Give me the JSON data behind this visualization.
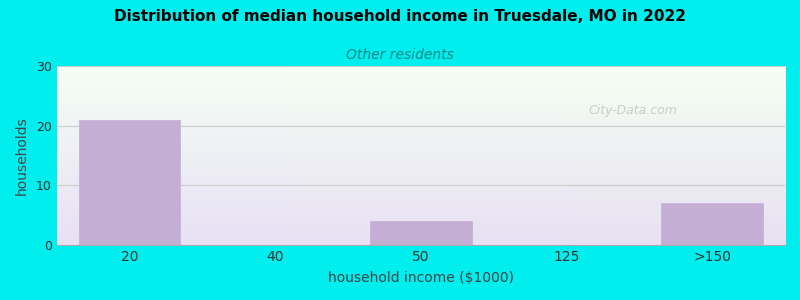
{
  "title": "Distribution of median household income in Truesdale, MO in 2022",
  "subtitle": "Other residents",
  "xlabel": "household income ($1000)",
  "ylabel": "households",
  "bar_labels": [
    "20",
    "40",
    "50",
    "125",
    ">150"
  ],
  "bar_positions": [
    0,
    1,
    2,
    3,
    4
  ],
  "bar_values": [
    21,
    0,
    4,
    0,
    7
  ],
  "bar_color": "#c4aed4",
  "ylim": [
    0,
    30
  ],
  "yticks": [
    0,
    10,
    20,
    30
  ],
  "background_color": "#00eeee",
  "title_color": "#000000",
  "subtitle_color": "#008888",
  "axis_label_color": "#444444",
  "watermark": "City-Data.com",
  "watermark_color": "#bbbbbb",
  "grad_tl": [
    0.96,
    1.0,
    0.96
  ],
  "grad_br": [
    0.91,
    0.88,
    0.95
  ]
}
